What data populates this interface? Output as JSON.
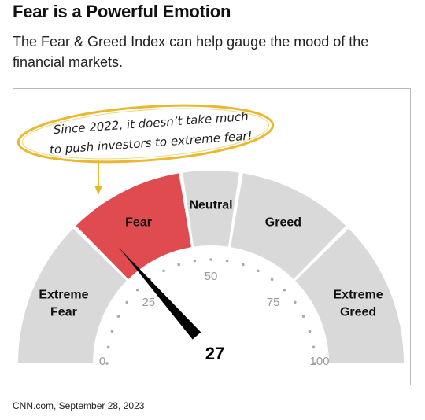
{
  "header": {
    "title": "Fear is a Powerful Emotion",
    "subtitle": "The Fear & Greed Index can help gauge the mood of the financial markets."
  },
  "gauge": {
    "value": 27,
    "value_label": "27",
    "min": 0,
    "max": 100,
    "segments": [
      {
        "label_lines": [
          "Extreme",
          "Fear"
        ],
        "from": 0,
        "to": 25,
        "color": "#d9d9d9",
        "highlight": false
      },
      {
        "label_lines": [
          "Fear"
        ],
        "from": 25,
        "to": 45,
        "color": "#e04b4f",
        "highlight": true
      },
      {
        "label_lines": [
          "Neutral"
        ],
        "from": 45,
        "to": 55,
        "color": "#d9d9d9",
        "highlight": false
      },
      {
        "label_lines": [
          "Greed"
        ],
        "from": 55,
        "to": 75,
        "color": "#d9d9d9",
        "highlight": false
      },
      {
        "label_lines": [
          "Extreme",
          "Greed"
        ],
        "from": 75,
        "to": 100,
        "color": "#d9d9d9",
        "highlight": false
      }
    ],
    "tick_labels": [
      "0",
      "25",
      "50",
      "75",
      "100"
    ],
    "needle_color": "#000000",
    "dot_color": "#aaaaaa"
  },
  "callout": {
    "lines": [
      "Since 2022, it doesn’t take much",
      "to push investors to extreme fear!"
    ],
    "border_color": "#e8b830"
  },
  "footer": {
    "source": "CNN.com, September 28, 2023"
  }
}
